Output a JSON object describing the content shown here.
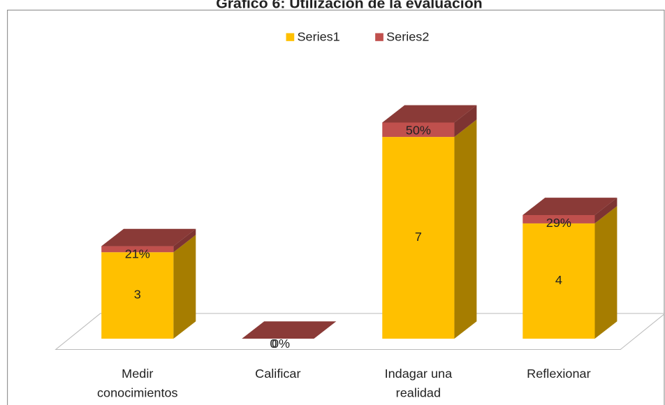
{
  "chart_data": {
    "type": "bar3d_stacked",
    "title": "Gráfico 6: Utilización de la evaluación",
    "categories": [
      "Medir conocimientos",
      "Calificar",
      "Indagar una realidad",
      "Reflexionar"
    ],
    "series": [
      {
        "name": "Series1",
        "color": "#ffc000",
        "values": [
          3,
          0,
          7,
          4
        ]
      },
      {
        "name": "Series2",
        "color": "#c0504d",
        "values": [
          0.21,
          0,
          0.5,
          0.29
        ],
        "value_labels": [
          "21%",
          "0%",
          "50%",
          "29%"
        ]
      }
    ],
    "legend": "top"
  }
}
